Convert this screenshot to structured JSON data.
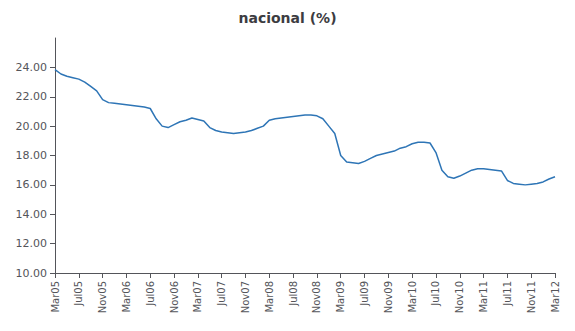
{
  "chart_data": {
    "type": "line",
    "title": "nacional (%)",
    "color": "#2E75B6",
    "grid": false,
    "categories": [
      "Mar05",
      null,
      null,
      null,
      "Jul05",
      null,
      null,
      null,
      "Nov05",
      null,
      null,
      null,
      "Mar06",
      null,
      null,
      null,
      "Jul06",
      null,
      null,
      null,
      "Nov06",
      null,
      null,
      null,
      "Mar07",
      null,
      null,
      null,
      "Jul07",
      null,
      null,
      null,
      "Nov07",
      null,
      null,
      null,
      "Mar08",
      null,
      null,
      null,
      "Jul08",
      null,
      null,
      null,
      "Nov08",
      null,
      null,
      null,
      "Mar09",
      null,
      null,
      null,
      "Jul09",
      null,
      null,
      null,
      "Nov09",
      null,
      null,
      null,
      "Mar10",
      null,
      null,
      null,
      "Jul10",
      null,
      null,
      null,
      "Nov10",
      null,
      null,
      null,
      "Mar11",
      null,
      null,
      null,
      "Jul11",
      null,
      null,
      null,
      "Nov11",
      null,
      null,
      null,
      "Mar12"
    ],
    "values": [
      23.85,
      23.55,
      23.4,
      23.3,
      23.2,
      23.0,
      22.7,
      22.4,
      21.8,
      21.6,
      21.55,
      21.5,
      21.45,
      21.4,
      21.35,
      21.3,
      21.2,
      20.5,
      20.0,
      19.9,
      20.1,
      20.3,
      20.4,
      20.55,
      20.45,
      20.35,
      19.9,
      19.7,
      19.6,
      19.55,
      19.5,
      19.55,
      19.6,
      19.7,
      19.85,
      20.0,
      20.4,
      20.5,
      20.55,
      20.6,
      20.65,
      20.7,
      20.75,
      20.75,
      20.7,
      20.5,
      20.0,
      19.5,
      18.0,
      17.55,
      17.5,
      17.45,
      17.6,
      17.8,
      18.0,
      18.1,
      18.2,
      18.3,
      18.5,
      18.6,
      18.8,
      18.9,
      18.9,
      18.85,
      18.2,
      17.0,
      16.55,
      16.45,
      16.6,
      16.8,
      17.0,
      17.1,
      17.1,
      17.05,
      17.0,
      16.95,
      16.3,
      16.1,
      16.05,
      16.0,
      16.05,
      16.1,
      16.2,
      16.4,
      16.55
    ],
    "ylim": [
      10.0,
      26.0
    ],
    "yticks": [
      {
        "value": 10,
        "label": "10.00"
      },
      {
        "value": 12,
        "label": "12.00"
      },
      {
        "value": 14,
        "label": "14.00"
      },
      {
        "value": 16,
        "label": "16.00"
      },
      {
        "value": 18,
        "label": "18.00"
      },
      {
        "value": 20,
        "label": "20.00"
      },
      {
        "value": 22,
        "label": "22.00"
      },
      {
        "value": 24,
        "label": "24.00"
      }
    ]
  }
}
